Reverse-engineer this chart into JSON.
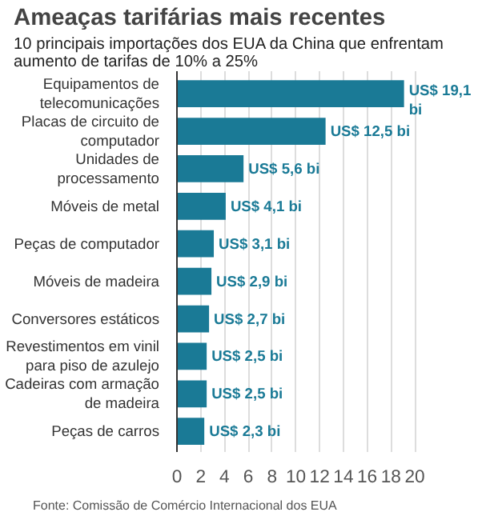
{
  "chart_data": {
    "type": "bar",
    "orientation": "horizontal",
    "title": "Ameaças tarifárias mais recentes",
    "subtitle": "10 principais importações dos EUA da China que enfrentam aumento de tarifas de 10% a 25%",
    "categories": [
      "Equipamentos de telecomunicações",
      "Placas de circuito de computador",
      "Unidades de processamento",
      "Móveis de metal",
      "Peças de computador",
      "Móveis de madeira",
      "Conversores estáticos",
      "Revestimentos em vinil para piso de azulejo",
      "Cadeiras com armação de madeira",
      "Peças de carros"
    ],
    "values": [
      19.1,
      12.5,
      5.6,
      4.1,
      3.1,
      2.9,
      2.7,
      2.5,
      2.5,
      2.3
    ],
    "value_labels": [
      "US$ 19,1 bi",
      "US$ 12,5 bi",
      "US$ 5,6 bi",
      "US$ 4,1 bi",
      "US$ 3,1 bi",
      "US$ 2,9 bi",
      "US$ 2,7 bi",
      "US$ 2,5 bi",
      "US$ 2,5 bi",
      "US$ 2,3 bi"
    ],
    "color": "#1a7a96",
    "xlim": [
      0,
      20
    ],
    "xticks": [
      0,
      2,
      4,
      6,
      8,
      10,
      12,
      14,
      16,
      18,
      20
    ],
    "grid": "x",
    "annotations": [
      "Fonte: Comissão de Comércio Internacional dos EUA"
    ]
  }
}
